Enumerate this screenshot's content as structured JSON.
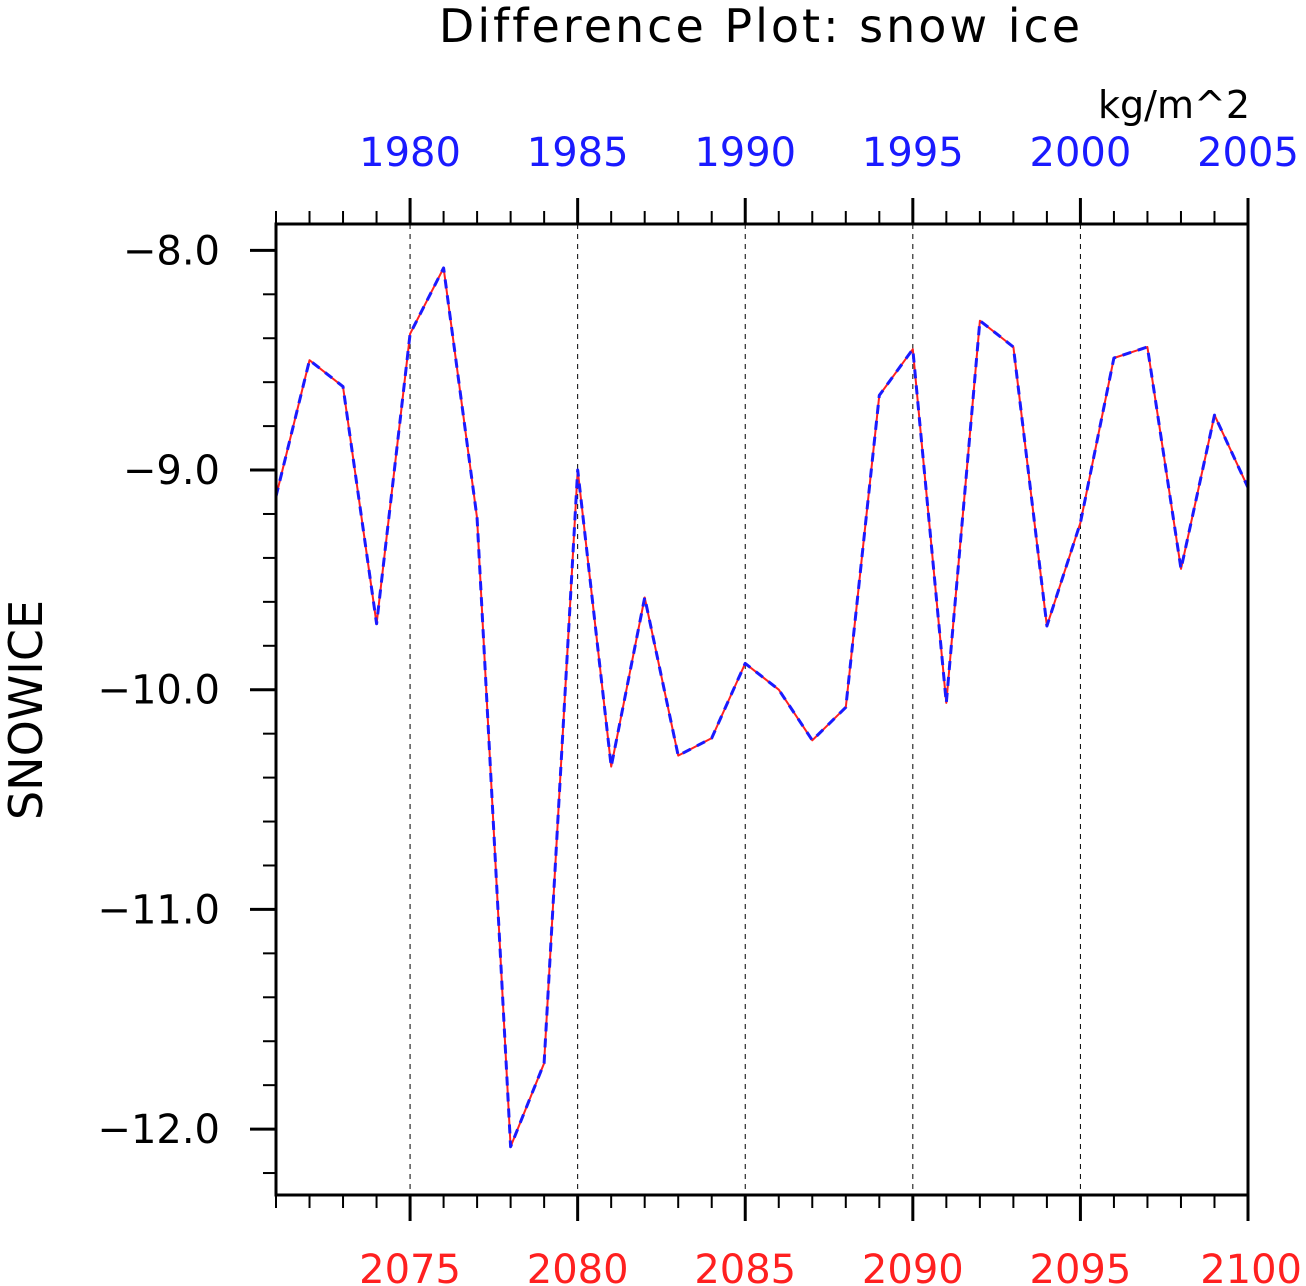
{
  "chart_data": {
    "type": "line",
    "title": "Difference Plot: snow ice",
    "units": "kg/m^2",
    "ylabel": "SNOWICE",
    "ylim": [
      -12.3,
      -7.88
    ],
    "y_major_ticks": [
      -8.0,
      -9.0,
      -10.0,
      -11.0,
      -12.0
    ],
    "y_tick_labels": [
      "−8.0",
      "−9.0",
      "−10.0",
      "−11.0",
      "−12.0"
    ],
    "y_minor_step": 0.2,
    "grid": "vertical dashed at bottom-axis major ticks",
    "bottom_axis": {
      "xlim": [
        2071,
        2100
      ],
      "major_ticks": [
        2075,
        2080,
        2085,
        2090,
        2095,
        2100
      ],
      "labels": [
        "2075",
        "2080",
        "2085",
        "2090",
        "2095",
        "2100"
      ],
      "color": "#ff2020"
    },
    "top_axis": {
      "xlim": [
        1976,
        2005
      ],
      "major_ticks": [
        1980,
        1985,
        1990,
        1995,
        2000,
        2005
      ],
      "labels": [
        "1980",
        "1985",
        "1990",
        "1995",
        "2000",
        "2005"
      ],
      "color": "#1a1aff"
    },
    "series": [
      {
        "axis": "bottom",
        "color": "#ff2020",
        "style": "solid",
        "x": [
          2071,
          2072,
          2073,
          2074,
          2075,
          2076,
          2077,
          2078,
          2079,
          2080,
          2081,
          2082,
          2083,
          2084,
          2085,
          2086,
          2087,
          2088,
          2089,
          2090,
          2091,
          2092,
          2093,
          2094,
          2095,
          2096,
          2097,
          2098,
          2099,
          2100
        ],
        "y": [
          -9.12,
          -8.5,
          -8.62,
          -9.7,
          -8.38,
          -8.08,
          -9.22,
          -12.08,
          -11.7,
          -9.0,
          -10.35,
          -9.58,
          -10.3,
          -10.22,
          -9.88,
          -10.0,
          -10.23,
          -10.08,
          -8.66,
          -8.45,
          -10.06,
          -8.32,
          -8.44,
          -9.71,
          -9.24,
          -8.49,
          -8.44,
          -9.45,
          -8.75,
          -9.08
        ]
      },
      {
        "axis": "top",
        "color": "#1a1aff",
        "style": "dashed",
        "x": [
          1976,
          1977,
          1978,
          1979,
          1980,
          1981,
          1982,
          1983,
          1984,
          1985,
          1986,
          1987,
          1988,
          1989,
          1990,
          1991,
          1992,
          1993,
          1994,
          1995,
          1996,
          1997,
          1998,
          1999,
          2000,
          2001,
          2002,
          2003,
          2004,
          2005
        ],
        "y": [
          -9.12,
          -8.5,
          -8.62,
          -9.7,
          -8.38,
          -8.08,
          -9.22,
          -12.08,
          -11.7,
          -9.0,
          -10.35,
          -9.58,
          -10.3,
          -10.22,
          -9.88,
          -10.0,
          -10.23,
          -10.08,
          -8.66,
          -8.45,
          -10.06,
          -8.32,
          -8.44,
          -9.71,
          -9.24,
          -8.49,
          -8.44,
          -9.45,
          -8.75,
          -9.08
        ]
      }
    ]
  }
}
